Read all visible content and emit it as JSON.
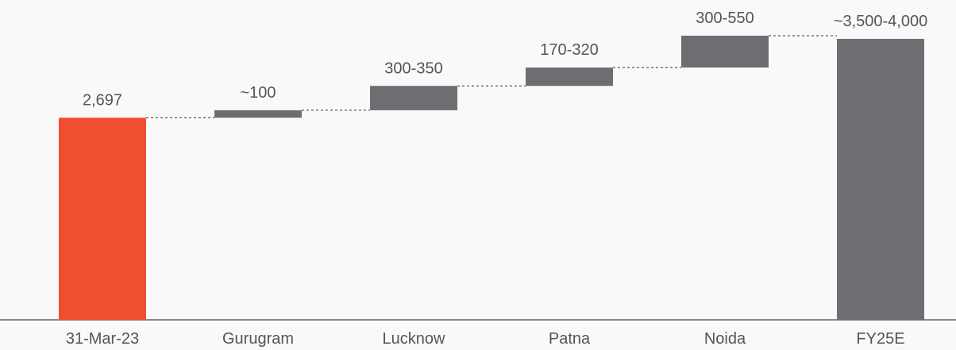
{
  "chart_data": {
    "type": "waterfall",
    "categories": [
      "31-Mar-23",
      "Gurugram",
      "Lucknow",
      "Patna",
      "Noida",
      "FY25E"
    ],
    "values": [
      2697,
      100,
      [
        300,
        350
      ],
      [
        170,
        320
      ],
      [
        300,
        550
      ],
      [
        3500,
        4000
      ]
    ],
    "value_labels": [
      "2,697",
      "~100",
      "300-350",
      "170-320",
      "300-550",
      "~3,500-4,000"
    ],
    "colors": [
      "#f04e30",
      "#6d6e71",
      "#6d6e71",
      "#6d6e71",
      "#6d6e71",
      "#6d6e71"
    ],
    "total_last": true
  }
}
